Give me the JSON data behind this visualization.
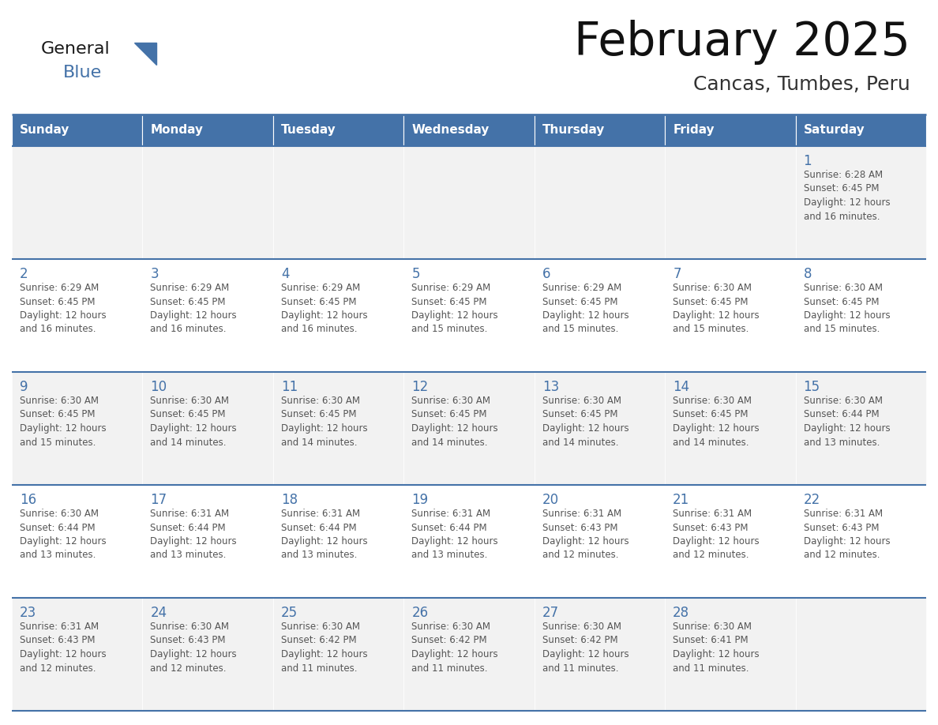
{
  "title": "February 2025",
  "subtitle": "Cancas, Tumbes, Peru",
  "header_color": "#4472A8",
  "header_text_color": "#FFFFFF",
  "cell_bg_odd": "#F2F2F2",
  "cell_bg_even": "#FFFFFF",
  "day_num_color": "#4472A8",
  "text_color": "#555555",
  "line_color": "#4472A8",
  "days_of_week": [
    "Sunday",
    "Monday",
    "Tuesday",
    "Wednesday",
    "Thursday",
    "Friday",
    "Saturday"
  ],
  "weeks": [
    [
      {
        "day": "",
        "info": ""
      },
      {
        "day": "",
        "info": ""
      },
      {
        "day": "",
        "info": ""
      },
      {
        "day": "",
        "info": ""
      },
      {
        "day": "",
        "info": ""
      },
      {
        "day": "",
        "info": ""
      },
      {
        "day": "1",
        "info": "Sunrise: 6:28 AM\nSunset: 6:45 PM\nDaylight: 12 hours\nand 16 minutes."
      }
    ],
    [
      {
        "day": "2",
        "info": "Sunrise: 6:29 AM\nSunset: 6:45 PM\nDaylight: 12 hours\nand 16 minutes."
      },
      {
        "day": "3",
        "info": "Sunrise: 6:29 AM\nSunset: 6:45 PM\nDaylight: 12 hours\nand 16 minutes."
      },
      {
        "day": "4",
        "info": "Sunrise: 6:29 AM\nSunset: 6:45 PM\nDaylight: 12 hours\nand 16 minutes."
      },
      {
        "day": "5",
        "info": "Sunrise: 6:29 AM\nSunset: 6:45 PM\nDaylight: 12 hours\nand 15 minutes."
      },
      {
        "day": "6",
        "info": "Sunrise: 6:29 AM\nSunset: 6:45 PM\nDaylight: 12 hours\nand 15 minutes."
      },
      {
        "day": "7",
        "info": "Sunrise: 6:30 AM\nSunset: 6:45 PM\nDaylight: 12 hours\nand 15 minutes."
      },
      {
        "day": "8",
        "info": "Sunrise: 6:30 AM\nSunset: 6:45 PM\nDaylight: 12 hours\nand 15 minutes."
      }
    ],
    [
      {
        "day": "9",
        "info": "Sunrise: 6:30 AM\nSunset: 6:45 PM\nDaylight: 12 hours\nand 15 minutes."
      },
      {
        "day": "10",
        "info": "Sunrise: 6:30 AM\nSunset: 6:45 PM\nDaylight: 12 hours\nand 14 minutes."
      },
      {
        "day": "11",
        "info": "Sunrise: 6:30 AM\nSunset: 6:45 PM\nDaylight: 12 hours\nand 14 minutes."
      },
      {
        "day": "12",
        "info": "Sunrise: 6:30 AM\nSunset: 6:45 PM\nDaylight: 12 hours\nand 14 minutes."
      },
      {
        "day": "13",
        "info": "Sunrise: 6:30 AM\nSunset: 6:45 PM\nDaylight: 12 hours\nand 14 minutes."
      },
      {
        "day": "14",
        "info": "Sunrise: 6:30 AM\nSunset: 6:45 PM\nDaylight: 12 hours\nand 14 minutes."
      },
      {
        "day": "15",
        "info": "Sunrise: 6:30 AM\nSunset: 6:44 PM\nDaylight: 12 hours\nand 13 minutes."
      }
    ],
    [
      {
        "day": "16",
        "info": "Sunrise: 6:30 AM\nSunset: 6:44 PM\nDaylight: 12 hours\nand 13 minutes."
      },
      {
        "day": "17",
        "info": "Sunrise: 6:31 AM\nSunset: 6:44 PM\nDaylight: 12 hours\nand 13 minutes."
      },
      {
        "day": "18",
        "info": "Sunrise: 6:31 AM\nSunset: 6:44 PM\nDaylight: 12 hours\nand 13 minutes."
      },
      {
        "day": "19",
        "info": "Sunrise: 6:31 AM\nSunset: 6:44 PM\nDaylight: 12 hours\nand 13 minutes."
      },
      {
        "day": "20",
        "info": "Sunrise: 6:31 AM\nSunset: 6:43 PM\nDaylight: 12 hours\nand 12 minutes."
      },
      {
        "day": "21",
        "info": "Sunrise: 6:31 AM\nSunset: 6:43 PM\nDaylight: 12 hours\nand 12 minutes."
      },
      {
        "day": "22",
        "info": "Sunrise: 6:31 AM\nSunset: 6:43 PM\nDaylight: 12 hours\nand 12 minutes."
      }
    ],
    [
      {
        "day": "23",
        "info": "Sunrise: 6:31 AM\nSunset: 6:43 PM\nDaylight: 12 hours\nand 12 minutes."
      },
      {
        "day": "24",
        "info": "Sunrise: 6:30 AM\nSunset: 6:43 PM\nDaylight: 12 hours\nand 12 minutes."
      },
      {
        "day": "25",
        "info": "Sunrise: 6:30 AM\nSunset: 6:42 PM\nDaylight: 12 hours\nand 11 minutes."
      },
      {
        "day": "26",
        "info": "Sunrise: 6:30 AM\nSunset: 6:42 PM\nDaylight: 12 hours\nand 11 minutes."
      },
      {
        "day": "27",
        "info": "Sunrise: 6:30 AM\nSunset: 6:42 PM\nDaylight: 12 hours\nand 11 minutes."
      },
      {
        "day": "28",
        "info": "Sunrise: 6:30 AM\nSunset: 6:41 PM\nDaylight: 12 hours\nand 11 minutes."
      },
      {
        "day": "",
        "info": ""
      }
    ]
  ],
  "logo_color_general": "#1a1a1a",
  "logo_color_blue": "#4472A8",
  "logo_triangle_color": "#4472A8",
  "figwidth": 11.88,
  "figheight": 9.18,
  "dpi": 100
}
